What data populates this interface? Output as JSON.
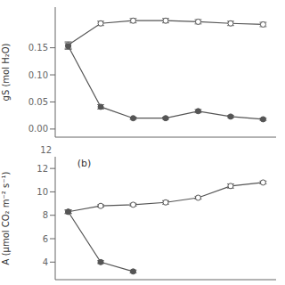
{
  "chart_data": [
    {
      "type": "line",
      "ylabel": "gS (mol H₂O)",
      "x": [
        1,
        2,
        3,
        4,
        5,
        6,
        7
      ],
      "xlim": [
        0.6,
        7.4
      ],
      "xticks": [],
      "ylim": [
        -0.015,
        0.225
      ],
      "yticks": [
        {
          "value": 0.0,
          "label": "0.00"
        },
        {
          "value": 0.05,
          "label": "0.05"
        },
        {
          "value": 0.1,
          "label": "0.10"
        },
        {
          "value": 0.15,
          "label": "0.15"
        }
      ],
      "tick_labels": "y",
      "series": [
        {
          "color": "#555555",
          "marker": "open_circle",
          "line_style": "solid",
          "values": [
            0.155,
            0.195,
            0.2,
            0.2,
            0.198,
            0.195,
            0.193
          ],
          "errors": [
            0.006,
            0.004,
            0.004,
            0.004,
            0.004,
            0.004,
            0.004
          ]
        },
        {
          "color": "#555555",
          "marker": "circle",
          "line_style": "solid",
          "values": [
            0.153,
            0.041,
            0.02,
            0.02,
            0.033,
            0.023,
            0.018
          ],
          "errors": [
            0.006,
            0.004,
            0.002,
            0.002,
            0.003,
            0.002,
            0.002
          ]
        }
      ]
    },
    {
      "type": "line",
      "title": "(b)",
      "annotations": [
        "12"
      ],
      "ylabel": "A (μmol CO₂ m⁻² s⁻¹)",
      "x": [
        1,
        2,
        3,
        4,
        5,
        6,
        7
      ],
      "xlim": [
        0.6,
        7.4
      ],
      "xticks": [],
      "ylim": [
        2.5,
        13.0
      ],
      "yticks": [
        4,
        6,
        8,
        10,
        12
      ],
      "tick_labels": "y",
      "series": [
        {
          "color": "#555555",
          "marker": "open_circle",
          "line_style": "solid",
          "values": [
            8.3,
            8.8,
            8.9,
            9.1,
            9.5,
            10.5,
            10.8
          ],
          "errors": [
            0.15,
            0.1,
            0.12,
            0.15,
            0.12,
            0.18,
            0.12
          ]
        },
        {
          "color": "#555555",
          "marker": "circle",
          "line_style": "solid",
          "values": [
            8.3,
            4.0,
            3.2,
            null,
            null,
            null,
            null
          ],
          "errors": [
            0.15,
            0.12,
            0.12,
            null,
            null,
            null,
            null
          ]
        }
      ]
    }
  ]
}
